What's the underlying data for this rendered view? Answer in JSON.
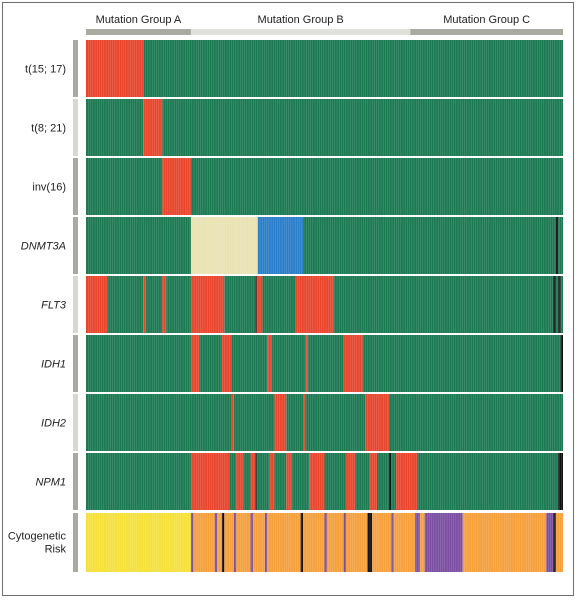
{
  "chart_data": {
    "type": "heatmap",
    "groups": [
      {
        "label": "Mutation Group A",
        "range": [
          0,
          0.22
        ]
      },
      {
        "label": "Mutation Group B",
        "range": [
          0.22,
          0.68
        ]
      },
      {
        "label": "Mutation Group C",
        "range": [
          0.68,
          1.0
        ]
      }
    ],
    "rows": [
      {
        "label": "t(15; 17)",
        "italic": false,
        "segments": [
          [
            0,
            0.12,
            "mutated"
          ],
          [
            0.12,
            1.0,
            "wildtype"
          ]
        ]
      },
      {
        "label": "t(8; 21)",
        "italic": false,
        "segments": [
          [
            0,
            0.12,
            "wildtype"
          ],
          [
            0.12,
            0.16,
            "mutated"
          ],
          [
            0.16,
            1.0,
            "wildtype"
          ]
        ]
      },
      {
        "label": "inv(16)",
        "italic": false,
        "segments": [
          [
            0,
            0.16,
            "wildtype"
          ],
          [
            0.16,
            0.22,
            "mutated"
          ],
          [
            0.22,
            1.0,
            "wildtype"
          ]
        ]
      },
      {
        "label": "DNMT3A",
        "italic": true,
        "segments": [
          [
            0,
            0.22,
            "wildtype"
          ],
          [
            0.22,
            0.36,
            "cat_a"
          ],
          [
            0.36,
            0.455,
            "cat_b"
          ],
          [
            0.455,
            0.985,
            "wildtype"
          ],
          [
            0.985,
            0.99,
            "missing"
          ],
          [
            0.99,
            1.0,
            "wildtype"
          ]
        ]
      },
      {
        "label": "FLT3",
        "italic": true,
        "segments": [
          [
            0,
            0.045,
            "mutated"
          ],
          [
            0.045,
            0.12,
            "wildtype"
          ],
          [
            0.12,
            0.125,
            "mutated"
          ],
          [
            0.125,
            0.16,
            "wildtype"
          ],
          [
            0.16,
            0.168,
            "mutated"
          ],
          [
            0.168,
            0.22,
            "wildtype"
          ],
          [
            0.22,
            0.29,
            "mutated"
          ],
          [
            0.29,
            0.355,
            "wildtype"
          ],
          [
            0.355,
            0.358,
            "missing"
          ],
          [
            0.358,
            0.37,
            "mutated"
          ],
          [
            0.37,
            0.44,
            "wildtype"
          ],
          [
            0.44,
            0.52,
            "mutated"
          ],
          [
            0.52,
            0.98,
            "wildtype"
          ],
          [
            0.98,
            0.985,
            "missing"
          ],
          [
            0.985,
            0.99,
            "wildtype"
          ],
          [
            0.99,
            0.995,
            "missing"
          ],
          [
            0.995,
            1.0,
            "wildtype"
          ]
        ]
      },
      {
        "label": "IDH1",
        "italic": true,
        "segments": [
          [
            0,
            0.22,
            "wildtype"
          ],
          [
            0.22,
            0.238,
            "mutated"
          ],
          [
            0.238,
            0.285,
            "wildtype"
          ],
          [
            0.285,
            0.305,
            "mutated"
          ],
          [
            0.305,
            0.38,
            "wildtype"
          ],
          [
            0.38,
            0.39,
            "mutated"
          ],
          [
            0.39,
            0.46,
            "wildtype"
          ],
          [
            0.46,
            0.465,
            "mutated"
          ],
          [
            0.465,
            0.54,
            "wildtype"
          ],
          [
            0.54,
            0.58,
            "mutated"
          ],
          [
            0.58,
            0.995,
            "wildtype"
          ],
          [
            0.995,
            1.0,
            "missing"
          ]
        ]
      },
      {
        "label": "IDH2",
        "italic": true,
        "segments": [
          [
            0,
            0.305,
            "wildtype"
          ],
          [
            0.305,
            0.31,
            "mutated"
          ],
          [
            0.31,
            0.395,
            "wildtype"
          ],
          [
            0.395,
            0.42,
            "mutated"
          ],
          [
            0.42,
            0.455,
            "wildtype"
          ],
          [
            0.455,
            0.46,
            "mutated"
          ],
          [
            0.46,
            0.585,
            "wildtype"
          ],
          [
            0.585,
            0.635,
            "mutated"
          ],
          [
            0.635,
            1.0,
            "wildtype"
          ]
        ]
      },
      {
        "label": "NPM1",
        "italic": true,
        "segments": [
          [
            0,
            0.22,
            "wildtype"
          ],
          [
            0.22,
            0.3,
            "mutated"
          ],
          [
            0.3,
            0.315,
            "wildtype"
          ],
          [
            0.315,
            0.33,
            "mutated"
          ],
          [
            0.33,
            0.345,
            "wildtype"
          ],
          [
            0.345,
            0.355,
            "mutated"
          ],
          [
            0.355,
            0.358,
            "missing"
          ],
          [
            0.358,
            0.385,
            "wildtype"
          ],
          [
            0.385,
            0.395,
            "mutated"
          ],
          [
            0.395,
            0.42,
            "wildtype"
          ],
          [
            0.42,
            0.432,
            "mutated"
          ],
          [
            0.432,
            0.468,
            "wildtype"
          ],
          [
            0.468,
            0.5,
            "mutated"
          ],
          [
            0.5,
            0.545,
            "wildtype"
          ],
          [
            0.545,
            0.565,
            "mutated"
          ],
          [
            0.565,
            0.595,
            "wildtype"
          ],
          [
            0.595,
            0.61,
            "mutated"
          ],
          [
            0.61,
            0.635,
            "wildtype"
          ],
          [
            0.635,
            0.64,
            "missing"
          ],
          [
            0.64,
            0.65,
            "wildtype"
          ],
          [
            0.65,
            0.695,
            "mutated"
          ],
          [
            0.695,
            0.99,
            "wildtype"
          ],
          [
            0.99,
            1.0,
            "missing"
          ]
        ]
      },
      {
        "label": "Cytogenetic Risk",
        "italic": false,
        "segments": [
          [
            0,
            0.22,
            "favorable"
          ],
          [
            0.22,
            0.225,
            "adverse"
          ],
          [
            0.225,
            0.27,
            "intermediate"
          ],
          [
            0.27,
            0.275,
            "adverse"
          ],
          [
            0.275,
            0.285,
            "intermediate"
          ],
          [
            0.285,
            0.29,
            "missing"
          ],
          [
            0.29,
            0.31,
            "intermediate"
          ],
          [
            0.31,
            0.315,
            "adverse"
          ],
          [
            0.315,
            0.345,
            "intermediate"
          ],
          [
            0.345,
            0.35,
            "adverse"
          ],
          [
            0.35,
            0.375,
            "intermediate"
          ],
          [
            0.375,
            0.38,
            "adverse"
          ],
          [
            0.38,
            0.45,
            "intermediate"
          ],
          [
            0.45,
            0.455,
            "missing"
          ],
          [
            0.455,
            0.5,
            "intermediate"
          ],
          [
            0.5,
            0.505,
            "adverse"
          ],
          [
            0.505,
            0.54,
            "intermediate"
          ],
          [
            0.54,
            0.545,
            "adverse"
          ],
          [
            0.545,
            0.59,
            "intermediate"
          ],
          [
            0.59,
            0.6,
            "missing"
          ],
          [
            0.6,
            0.64,
            "intermediate"
          ],
          [
            0.64,
            0.645,
            "adverse"
          ],
          [
            0.645,
            0.69,
            "intermediate"
          ],
          [
            0.69,
            0.7,
            "adverse"
          ],
          [
            0.7,
            0.71,
            "intermediate"
          ],
          [
            0.71,
            0.79,
            "adverse"
          ],
          [
            0.79,
            0.965,
            "intermediate"
          ],
          [
            0.965,
            0.98,
            "adverse"
          ],
          [
            0.98,
            0.985,
            "missing"
          ],
          [
            0.985,
            1.0,
            "intermediate"
          ]
        ]
      }
    ],
    "colors": {
      "wildtype": "#1b7a52",
      "mutated": "#e8452c",
      "cat_a": "#e9e2b2",
      "cat_b": "#2a7ec9",
      "missing": "#111111",
      "favorable": "#f5e13a",
      "intermediate": "#f6a03c",
      "adverse": "#7b4ea2"
    },
    "grid": false,
    "legend": "none"
  }
}
